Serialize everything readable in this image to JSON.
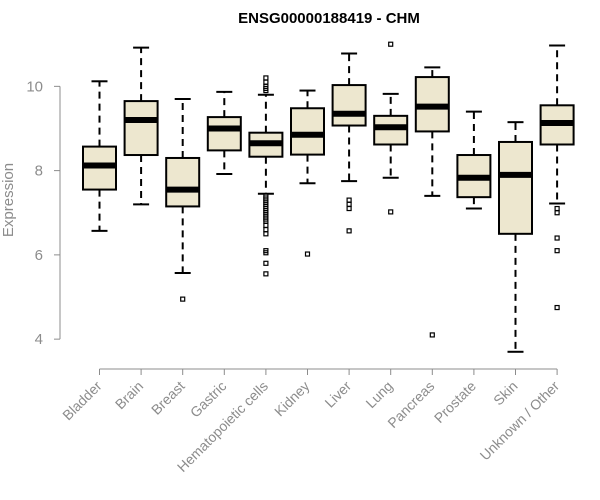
{
  "chart_data": {
    "type": "boxplot",
    "title": "ENSG00000188419 - CHM",
    "ylabel": "Expression",
    "xlabel": "",
    "ylim": [
      3.6,
      11.1
    ],
    "yticks": [
      4,
      6,
      8,
      10
    ],
    "box_fill": "#ede7cf",
    "stroke_color": "#000000",
    "axis_color": "#8c8c8c",
    "categories": [
      "Bladder",
      "Brain",
      "Breast",
      "Gastric",
      "Hematopoietic cells",
      "Kidney",
      "Liver",
      "Lung",
      "Pancreas",
      "Prostate",
      "Skin",
      "Unknown / Other"
    ],
    "series": [
      {
        "name": "Bladder",
        "min": 6.57,
        "q1": 7.55,
        "median": 8.12,
        "q3": 8.57,
        "max": 10.12,
        "outliers": []
      },
      {
        "name": "Brain",
        "min": 7.2,
        "q1": 8.37,
        "median": 9.2,
        "q3": 9.65,
        "max": 10.92,
        "outliers": []
      },
      {
        "name": "Breast",
        "min": 5.57,
        "q1": 7.15,
        "median": 7.55,
        "q3": 8.3,
        "max": 9.7,
        "outliers": [
          4.95
        ]
      },
      {
        "name": "Gastric",
        "min": 7.92,
        "q1": 8.48,
        "median": 9.0,
        "q3": 9.27,
        "max": 9.87,
        "outliers": []
      },
      {
        "name": "Hematopoietic cells",
        "min": 7.45,
        "q1": 8.33,
        "median": 8.65,
        "q3": 8.9,
        "max": 9.8,
        "outliers": [
          10.2,
          10.1,
          10.0,
          9.95,
          9.9,
          7.4,
          7.35,
          7.3,
          7.25,
          7.2,
          7.15,
          7.1,
          7.05,
          7.0,
          6.95,
          6.9,
          6.85,
          6.8,
          6.7,
          6.6,
          6.5,
          6.1,
          6.05,
          5.8,
          5.55
        ]
      },
      {
        "name": "Kidney",
        "min": 7.7,
        "q1": 8.38,
        "median": 8.85,
        "q3": 9.48,
        "max": 9.9,
        "outliers": [
          6.02
        ]
      },
      {
        "name": "Liver",
        "min": 7.75,
        "q1": 9.07,
        "median": 9.35,
        "q3": 10.03,
        "max": 10.78,
        "outliers": [
          7.3,
          7.2,
          7.1,
          6.57
        ]
      },
      {
        "name": "Lung",
        "min": 7.83,
        "q1": 8.62,
        "median": 9.03,
        "q3": 9.3,
        "max": 9.82,
        "outliers": [
          11.0,
          7.02
        ]
      },
      {
        "name": "Pancreas",
        "min": 7.4,
        "q1": 8.93,
        "median": 9.52,
        "q3": 10.22,
        "max": 10.45,
        "outliers": [
          4.1
        ]
      },
      {
        "name": "Prostate",
        "min": 7.1,
        "q1": 7.37,
        "median": 7.83,
        "q3": 8.37,
        "max": 9.4,
        "outliers": []
      },
      {
        "name": "Skin",
        "min": 3.7,
        "q1": 6.5,
        "median": 7.9,
        "q3": 8.68,
        "max": 9.15,
        "outliers": []
      },
      {
        "name": "Unknown / Other",
        "min": 7.22,
        "q1": 8.62,
        "median": 9.13,
        "q3": 9.55,
        "max": 10.97,
        "outliers": [
          7.1,
          7.0,
          6.4,
          6.1,
          4.75
        ]
      }
    ]
  }
}
